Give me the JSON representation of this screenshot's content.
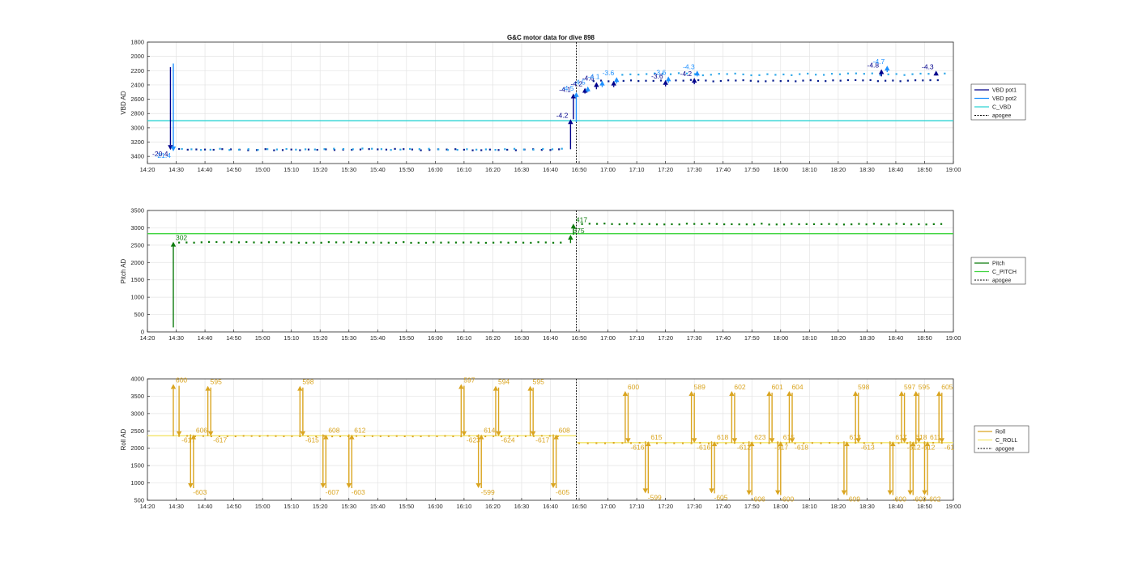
{
  "figure": {
    "title": "G&C motor data for dive 898"
  },
  "colors": {
    "vbd_pot1": "#00008B",
    "vbd_pot2": "#1E90FF",
    "c_vbd": "#2ED4D4",
    "vbd_dots1": "#0A1F8F",
    "vbd_dots2": "#30A8E8",
    "pitch": "#0B7A0B",
    "c_pitch": "#3FD43F",
    "roll": "#DAA520",
    "c_roll": "#F3E56A",
    "apogee": "#000000",
    "grid": "#E3E3E3",
    "axis": "#262626"
  },
  "chart_data": [
    {
      "id": "vbd",
      "type": "line",
      "title": "G&C motor data for dive 898",
      "xlabel": "",
      "ylabel": "VBD AD",
      "xlim": [
        "14:20",
        "19:00"
      ],
      "ylim": [
        1800,
        3500
      ],
      "y_reversed": true,
      "yticks": [
        1800,
        2000,
        2200,
        2400,
        2600,
        2800,
        3000,
        3200,
        3400
      ],
      "xticks": [
        "14:20",
        "14:30",
        "14:40",
        "14:50",
        "15:00",
        "15:10",
        "15:20",
        "15:30",
        "15:40",
        "15:50",
        "16:00",
        "16:10",
        "16:20",
        "16:30",
        "16:40",
        "16:50",
        "17:00",
        "17:10",
        "17:20",
        "17:30",
        "17:40",
        "17:50",
        "18:00",
        "18:10",
        "18:20",
        "18:30",
        "18:40",
        "18:50",
        "19:00"
      ],
      "grid": true,
      "legend": {
        "location": "outside-right",
        "entries": [
          "VBD pot1",
          "VBD pot2",
          "C_VBD",
          "apogee"
        ]
      },
      "c_vbd": 2900,
      "apogee": "16:49",
      "series": [
        {
          "name": "VBD pot1",
          "arrows": [
            {
              "t": "14:28",
              "from": 2150,
              "to": 3310,
              "label": "-20.4"
            },
            {
              "t": "16:47",
              "from": 3300,
              "to": 2880,
              "label": "-4.2"
            },
            {
              "t": "16:48",
              "from": 2880,
              "to": 2520,
              "label": "-4.1"
            },
            {
              "t": "16:52",
              "from": 2520,
              "to": 2440,
              "label": "-4.2"
            },
            {
              "t": "16:56",
              "from": 2460,
              "to": 2360,
              "label": "-4.6"
            },
            {
              "t": "17:02",
              "from": 2430,
              "to": 2340,
              "label": ""
            },
            {
              "t": "17:20",
              "from": 2420,
              "to": 2330,
              "label": "-3.6"
            },
            {
              "t": "17:30",
              "from": 2390,
              "to": 2300,
              "label": "-4.2"
            },
            {
              "t": "18:35",
              "from": 2280,
              "to": 2180,
              "label": "-4.8"
            },
            {
              "t": "18:54",
              "from": 2260,
              "to": 2200,
              "label": "-4.3"
            }
          ]
        },
        {
          "name": "VBD pot2",
          "arrows": [
            {
              "t": "14:29",
              "from": 2100,
              "to": 3330,
              "label": "-21.4"
            },
            {
              "t": "16:49",
              "from": 2920,
              "to": 2500,
              "label": "-4.5"
            },
            {
              "t": "16:53",
              "from": 2500,
              "to": 2420,
              "label": "-4.5"
            },
            {
              "t": "16:58",
              "from": 2430,
              "to": 2340,
              "label": "-4.1"
            },
            {
              "t": "17:03",
              "from": 2380,
              "to": 2290,
              "label": "-3.6"
            },
            {
              "t": "17:21",
              "from": 2370,
              "to": 2280,
              "label": "-3.6"
            },
            {
              "t": "17:31",
              "from": 2280,
              "to": 2200,
              "label": "-4.3"
            },
            {
              "t": "18:37",
              "from": 2220,
              "to": 2130,
              "label": "-4.7"
            }
          ]
        }
      ]
    },
    {
      "id": "pitch",
      "type": "line",
      "xlabel": "",
      "ylabel": "Pitch AD",
      "xlim": [
        "14:20",
        "19:00"
      ],
      "ylim": [
        0,
        3500
      ],
      "yticks": [
        0,
        500,
        1000,
        1500,
        2000,
        2500,
        3000,
        3500
      ],
      "xticks": [
        "14:20",
        "14:30",
        "14:40",
        "14:50",
        "15:00",
        "15:10",
        "15:20",
        "15:30",
        "15:40",
        "15:50",
        "16:00",
        "16:10",
        "16:20",
        "16:30",
        "16:40",
        "16:50",
        "17:00",
        "17:10",
        "17:20",
        "17:30",
        "17:40",
        "17:50",
        "18:00",
        "18:10",
        "18:20",
        "18:30",
        "18:40",
        "18:50",
        "19:00"
      ],
      "grid": true,
      "legend": {
        "location": "outside-right",
        "entries": [
          "Pitch",
          "C_PITCH",
          "apogee"
        ]
      },
      "c_pitch": 2830,
      "apogee": "16:49",
      "series": [
        {
          "name": "Pitch",
          "arrows": [
            {
              "t": "14:29",
              "from": 130,
              "to": 2600,
              "label": "302"
            },
            {
              "t": "16:47",
              "from": 2560,
              "to": 2800,
              "label": "375"
            },
            {
              "t": "16:48",
              "from": 2800,
              "to": 3120,
              "label": "417"
            }
          ]
        }
      ]
    },
    {
      "id": "roll",
      "type": "line",
      "xlabel": "",
      "ylabel": "Roll AD",
      "xlim": [
        "14:20",
        "19:00"
      ],
      "ylim": [
        500,
        4000
      ],
      "yticks": [
        500,
        1000,
        1500,
        2000,
        2500,
        3000,
        3500,
        4000
      ],
      "xticks": [
        "14:20",
        "14:30",
        "14:40",
        "14:50",
        "15:00",
        "15:10",
        "15:20",
        "15:30",
        "15:40",
        "15:50",
        "16:00",
        "16:10",
        "16:20",
        "16:30",
        "16:40",
        "16:50",
        "17:00",
        "17:10",
        "17:20",
        "17:30",
        "17:40",
        "17:50",
        "18:00",
        "18:10",
        "18:20",
        "18:30",
        "18:40",
        "18:50",
        "19:00"
      ],
      "grid": true,
      "legend": {
        "location": "outside-right",
        "entries": [
          "Roll",
          "C_ROLL",
          "apogee"
        ]
      },
      "c_roll_before": 2360,
      "c_roll_after": 2160,
      "apogee": "16:49",
      "series": [
        {
          "name": "Roll",
          "arrows": [
            {
              "t": "14:29",
              "from": 2350,
              "to": 3850,
              "label": "600"
            },
            {
              "t": "14:31",
              "from": 3800,
              "to": 2350,
              "label": "-617"
            },
            {
              "t": "14:35",
              "from": 2400,
              "to": 850,
              "label": "-603"
            },
            {
              "t": "14:36",
              "from": 850,
              "to": 2400,
              "label": "606"
            },
            {
              "t": "14:41",
              "from": 2350,
              "to": 3800,
              "label": "595"
            },
            {
              "t": "14:42",
              "from": 3750,
              "to": 2350,
              "label": "-617"
            },
            {
              "t": "15:13",
              "from": 2350,
              "to": 3800,
              "label": "598"
            },
            {
              "t": "15:14",
              "from": 3750,
              "to": 2350,
              "label": "-615"
            },
            {
              "t": "15:21",
              "from": 2400,
              "to": 850,
              "label": "-607"
            },
            {
              "t": "15:22",
              "from": 850,
              "to": 2400,
              "label": "608"
            },
            {
              "t": "15:30",
              "from": 2400,
              "to": 850,
              "label": "-603"
            },
            {
              "t": "15:31",
              "from": 850,
              "to": 2400,
              "label": "612"
            },
            {
              "t": "16:09",
              "from": 2350,
              "to": 3850,
              "label": "597"
            },
            {
              "t": "16:10",
              "from": 3800,
              "to": 2350,
              "label": "-623"
            },
            {
              "t": "16:15",
              "from": 2400,
              "to": 850,
              "label": "-599"
            },
            {
              "t": "16:16",
              "from": 850,
              "to": 2400,
              "label": "614"
            },
            {
              "t": "16:21",
              "from": 2350,
              "to": 3800,
              "label": "594"
            },
            {
              "t": "16:22",
              "from": 3750,
              "to": 2350,
              "label": "-624"
            },
            {
              "t": "16:33",
              "from": 2350,
              "to": 3800,
              "label": "595"
            },
            {
              "t": "16:34",
              "from": 3750,
              "to": 2350,
              "label": "-617"
            },
            {
              "t": "16:41",
              "from": 2400,
              "to": 850,
              "label": "-605"
            },
            {
              "t": "16:42",
              "from": 850,
              "to": 2400,
              "label": "608"
            },
            {
              "t": "17:06",
              "from": 2150,
              "to": 3650,
              "label": "600"
            },
            {
              "t": "17:07",
              "from": 3600,
              "to": 2150,
              "label": "-616"
            },
            {
              "t": "17:13",
              "from": 2200,
              "to": 700,
              "label": "-599"
            },
            {
              "t": "17:14",
              "from": 700,
              "to": 2200,
              "label": "615"
            },
            {
              "t": "17:29",
              "from": 2150,
              "to": 3650,
              "label": "589"
            },
            {
              "t": "17:30",
              "from": 3600,
              "to": 2150,
              "label": "-616"
            },
            {
              "t": "17:36",
              "from": 2200,
              "to": 700,
              "label": "-605"
            },
            {
              "t": "17:37",
              "from": 700,
              "to": 2200,
              "label": "618"
            },
            {
              "t": "17:43",
              "from": 2150,
              "to": 3650,
              "label": "602"
            },
            {
              "t": "17:44",
              "from": 3600,
              "to": 2150,
              "label": "-612"
            },
            {
              "t": "17:49",
              "from": 2200,
              "to": 650,
              "label": "-606"
            },
            {
              "t": "17:50",
              "from": 650,
              "to": 2200,
              "label": "623"
            },
            {
              "t": "17:56",
              "from": 2150,
              "to": 3650,
              "label": "601"
            },
            {
              "t": "17:57",
              "from": 3600,
              "to": 2150,
              "label": "-617"
            },
            {
              "t": "17:59",
              "from": 2200,
              "to": 650,
              "label": "-600"
            },
            {
              "t": "18:00",
              "from": 650,
              "to": 2200,
              "label": "615"
            },
            {
              "t": "18:03",
              "from": 2150,
              "to": 3650,
              "label": "604"
            },
            {
              "t": "18:04",
              "from": 3600,
              "to": 2150,
              "label": "-618"
            },
            {
              "t": "18:22",
              "from": 2200,
              "to": 650,
              "label": "-609"
            },
            {
              "t": "18:23",
              "from": 650,
              "to": 2200,
              "label": "613"
            },
            {
              "t": "18:26",
              "from": 2150,
              "to": 3650,
              "label": "598"
            },
            {
              "t": "18:27",
              "from": 3600,
              "to": 2150,
              "label": "-613"
            },
            {
              "t": "18:38",
              "from": 2200,
              "to": 650,
              "label": "-600"
            },
            {
              "t": "18:39",
              "from": 650,
              "to": 2200,
              "label": "617"
            },
            {
              "t": "18:42",
              "from": 2150,
              "to": 3650,
              "label": "597"
            },
            {
              "t": "18:43",
              "from": 3600,
              "to": 2150,
              "label": "-612"
            },
            {
              "t": "18:45",
              "from": 2200,
              "to": 650,
              "label": "-609"
            },
            {
              "t": "18:46",
              "from": 650,
              "to": 2200,
              "label": "618"
            },
            {
              "t": "18:47",
              "from": 2150,
              "to": 3650,
              "label": "595"
            },
            {
              "t": "18:48",
              "from": 3600,
              "to": 2150,
              "label": "-612"
            },
            {
              "t": "18:50",
              "from": 2200,
              "to": 650,
              "label": "-602"
            },
            {
              "t": "18:51",
              "from": 650,
              "to": 2200,
              "label": "611"
            },
            {
              "t": "18:55",
              "from": 2150,
              "to": 3650,
              "label": "605"
            },
            {
              "t": "18:56",
              "from": 3600,
              "to": 2150,
              "label": "-61"
            }
          ]
        }
      ]
    }
  ]
}
